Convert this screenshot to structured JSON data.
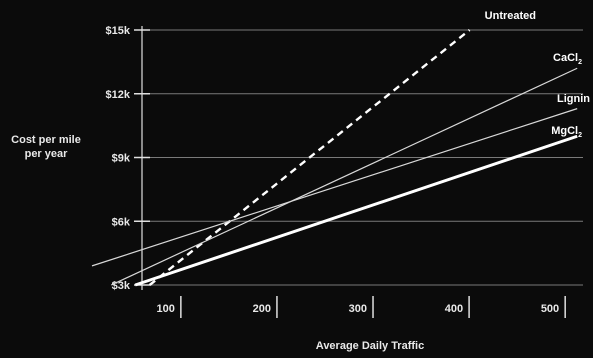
{
  "chart_data": {
    "type": "line",
    "xlabel": "Average Daily Traffic",
    "ylabel_lines": [
      "Cost per mile",
      "per year"
    ],
    "x_ticks": [
      100,
      200,
      300,
      400,
      500
    ],
    "x_tick_labels": [
      "100",
      "200",
      "300",
      "400",
      "500"
    ],
    "y_ticks": [
      3000,
      6000,
      9000,
      12000,
      15000
    ],
    "y_tick_labels": [
      "$3k",
      "$6k",
      "$9k",
      "$12k",
      "$15k"
    ],
    "xlim": [
      20,
      530
    ],
    "ylim": [
      3000,
      15000
    ],
    "grid": "horizontal",
    "series": [
      {
        "name": "Untreated",
        "style": "dashed",
        "color": "#ffffff",
        "width": 2.4,
        "x": [
          80,
          413
        ],
        "y": [
          3000,
          15000
        ]
      },
      {
        "name": "CaCl2",
        "style": "solid",
        "color": "#d8d8d8",
        "width": 1.2,
        "x": [
          40,
          525
        ],
        "y": [
          3000,
          13200
        ]
      },
      {
        "name": "Lignin",
        "style": "solid",
        "color": "#d8d8d8",
        "width": 1.2,
        "x": [
          20,
          525
        ],
        "y": [
          3900,
          11300
        ]
      },
      {
        "name": "MgCl2",
        "style": "solid",
        "color": "#ffffff",
        "width": 3,
        "x": [
          65,
          525
        ],
        "y": [
          3000,
          10000
        ]
      }
    ]
  }
}
